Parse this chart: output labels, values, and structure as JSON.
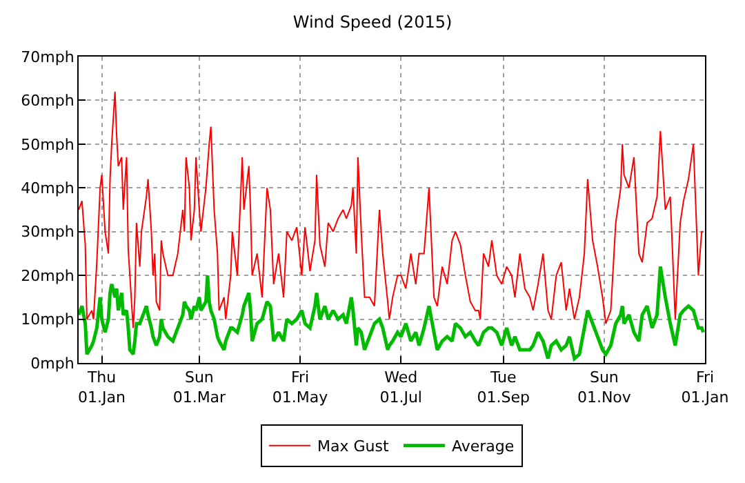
{
  "chart_data": {
    "type": "line",
    "title": "Wind Speed (2015)",
    "x": [
      "2014-12-18",
      "2014-12-20",
      "2014-12-22",
      "2014-12-23",
      "2014-12-26",
      "2014-12-27",
      "2014-12-29",
      "2014-12-31",
      "2015-01-01",
      "2015-01-03",
      "2015-01-05",
      "2015-01-06",
      "2015-01-07",
      "2015-01-09",
      "2015-01-10",
      "2015-01-11",
      "2015-01-13",
      "2015-01-14",
      "2015-01-16",
      "2015-01-17",
      "2015-01-18",
      "2015-01-20",
      "2015-01-21",
      "2015-01-22",
      "2015-01-24",
      "2015-01-25",
      "2015-01-28",
      "2015-01-29",
      "2015-01-31",
      "2015-02-01",
      "2015-02-02",
      "2015-02-03",
      "2015-02-05",
      "2015-02-06",
      "2015-02-07",
      "2015-02-10",
      "2015-02-13",
      "2015-02-16",
      "2015-02-19",
      "2015-02-20",
      "2015-02-21",
      "2015-02-23",
      "2015-02-24",
      "2015-02-26",
      "2015-02-27",
      "2015-03-01",
      "2015-03-02",
      "2015-03-05",
      "2015-03-06",
      "2015-03-07",
      "2015-03-08",
      "2015-03-10",
      "2015-03-12",
      "2015-03-13",
      "2015-03-16",
      "2015-03-17",
      "2015-03-20",
      "2015-03-21",
      "2015-03-24",
      "2015-03-27",
      "2015-03-28",
      "2015-03-31",
      "2015-04-01",
      "2015-04-02",
      "2015-04-05",
      "2015-04-08",
      "2015-04-11",
      "2015-04-13",
      "2015-04-15",
      "2015-04-18",
      "2015-04-21",
      "2015-04-23",
      "2015-04-26",
      "2015-04-29",
      "2015-05-02",
      "2015-05-04",
      "2015-05-07",
      "2015-05-10",
      "2015-05-11",
      "2015-05-13",
      "2015-05-16",
      "2015-05-18",
      "2015-05-21",
      "2015-05-24",
      "2015-05-27",
      "2015-05-29",
      "2015-06-01",
      "2015-06-02",
      "2015-06-04",
      "2015-06-05",
      "2015-06-07",
      "2015-06-09",
      "2015-06-12",
      "2015-06-15",
      "2015-06-18",
      "2015-06-20",
      "2015-06-23",
      "2015-06-24",
      "2015-06-26",
      "2015-06-29",
      "2015-07-01",
      "2015-07-04",
      "2015-07-07",
      "2015-07-10",
      "2015-07-12",
      "2015-07-15",
      "2015-07-18",
      "2015-07-21",
      "2015-07-23",
      "2015-07-26",
      "2015-07-29",
      "2015-08-01",
      "2015-08-03",
      "2015-08-06",
      "2015-08-09",
      "2015-08-12",
      "2015-08-15",
      "2015-08-17",
      "2015-08-18",
      "2015-08-20",
      "2015-08-23",
      "2015-08-25",
      "2015-08-28",
      "2015-08-31",
      "2015-09-03",
      "2015-09-06",
      "2015-09-08",
      "2015-09-11",
      "2015-09-14",
      "2015-09-17",
      "2015-09-19",
      "2015-09-22",
      "2015-09-25",
      "2015-09-28",
      "2015-09-30",
      "2015-10-03",
      "2015-10-06",
      "2015-10-09",
      "2015-10-11",
      "2015-10-14",
      "2015-10-17",
      "2015-10-20",
      "2015-10-22",
      "2015-10-25",
      "2015-10-28",
      "2015-10-31",
      "2015-11-02",
      "2015-11-05",
      "2015-11-08",
      "2015-11-11",
      "2015-11-12",
      "2015-11-13",
      "2015-11-16",
      "2015-11-19",
      "2015-11-22",
      "2015-11-24",
      "2015-11-27",
      "2015-11-30",
      "2015-12-03",
      "2015-12-05",
      "2015-12-08",
      "2015-12-11",
      "2015-12-14",
      "2015-12-17",
      "2015-12-19",
      "2015-12-22",
      "2015-12-25",
      "2015-12-28",
      "2015-12-30",
      "2015-12-31"
    ],
    "series": [
      {
        "name": "Max Gust",
        "color": "#ff0000",
        "values": [
          35,
          37,
          27,
          10,
          12,
          10,
          23,
          40,
          43,
          30,
          25,
          42,
          50,
          62,
          52,
          45,
          47,
          35,
          47,
          26,
          20,
          8,
          15,
          32,
          22,
          30,
          38,
          42,
          30,
          20,
          25,
          14,
          12,
          28,
          25,
          20,
          20,
          25,
          35,
          30,
          47,
          40,
          28,
          35,
          47,
          35,
          30,
          40,
          45,
          50,
          54,
          35,
          25,
          12,
          15,
          10,
          20,
          30,
          20,
          47,
          35,
          45,
          35,
          20,
          25,
          15,
          40,
          35,
          18,
          25,
          15,
          30,
          28,
          31,
          20,
          31,
          21,
          28,
          43,
          27,
          22,
          32,
          30,
          33,
          35,
          33,
          36,
          40,
          25,
          47,
          30,
          15,
          15,
          13,
          35,
          25,
          14,
          10,
          15,
          20,
          20,
          17,
          25,
          18,
          25,
          25,
          40,
          15,
          13,
          22,
          18,
          28,
          30,
          27,
          20,
          14,
          12,
          12,
          10,
          25,
          22,
          28,
          20,
          18,
          22,
          20,
          15,
          25,
          17,
          15,
          12,
          18,
          25,
          12,
          10,
          20,
          23,
          12,
          17,
          10,
          15,
          25,
          42,
          28,
          22,
          15,
          9,
          12,
          32,
          40,
          50,
          43,
          40,
          47,
          25,
          23,
          32,
          33,
          38,
          53,
          35,
          38,
          10,
          32,
          37,
          42,
          50,
          20,
          30,
          30
        ]
      },
      {
        "name": "Average",
        "color": "#00bb00",
        "values": [
          11,
          13,
          9,
          2,
          4,
          5,
          8,
          15,
          10,
          7,
          10,
          16,
          18,
          15,
          17,
          12,
          16,
          11,
          12,
          8,
          3,
          2,
          5,
          9,
          9,
          10,
          13,
          11,
          8,
          6,
          5,
          4,
          6,
          10,
          8,
          6,
          5,
          8,
          11,
          14,
          13,
          12,
          10,
          13,
          12,
          15,
          12,
          14,
          20,
          14,
          12,
          10,
          6,
          5,
          3,
          5,
          8,
          8,
          7,
          11,
          13,
          16,
          12,
          5,
          9,
          10,
          14,
          13,
          5,
          7,
          5,
          10,
          9,
          10,
          12,
          9,
          8,
          13,
          16,
          10,
          13,
          10,
          12,
          10,
          11,
          9,
          15,
          12,
          4,
          8,
          7,
          3,
          6,
          9,
          10,
          8,
          3,
          4,
          5,
          7,
          6,
          9,
          5,
          7,
          4,
          8,
          13,
          7,
          3,
          5,
          6,
          5,
          9,
          8,
          6,
          7,
          5,
          4,
          5,
          7,
          8,
          8,
          7,
          4,
          8,
          4,
          6,
          3,
          3,
          3,
          4,
          7,
          5,
          1,
          4,
          5,
          3,
          4,
          6,
          1,
          2,
          8,
          12,
          9,
          6,
          3,
          2,
          4,
          9,
          11,
          13,
          9,
          11,
          7,
          5,
          11,
          13,
          8,
          11,
          22,
          15,
          9,
          4,
          11,
          12,
          13,
          12,
          8,
          8,
          7
        ]
      }
    ],
    "xlim": [
      "2014-12-18",
      "2016-01-01"
    ],
    "xticks": [
      {
        "value": "2015-01-01",
        "label": "Thu\n01.Jan"
      },
      {
        "value": "2015-03-01",
        "label": "Sun\n01.Mar"
      },
      {
        "value": "2015-05-01",
        "label": "Fri\n01.May"
      },
      {
        "value": "2015-07-01",
        "label": "Wed\n01.Jul"
      },
      {
        "value": "2015-09-01",
        "label": "Tue\n01.Sep"
      },
      {
        "value": "2015-11-01",
        "label": "Sun\n01.Nov"
      },
      {
        "value": "2016-01-01",
        "label": "Fri\n01.Jan"
      }
    ],
    "ylim": [
      0,
      70
    ],
    "yticks": [
      {
        "value": 0,
        "label": "0mph"
      },
      {
        "value": 10,
        "label": "10mph"
      },
      {
        "value": 20,
        "label": "20mph"
      },
      {
        "value": 30,
        "label": "30mph"
      },
      {
        "value": 40,
        "label": "40mph"
      },
      {
        "value": 50,
        "label": "50mph"
      },
      {
        "value": 60,
        "label": "60mph"
      },
      {
        "value": 70,
        "label": "70mph"
      }
    ],
    "grid": true,
    "legend": "bottom",
    "marker": "none",
    "line_style": "solid"
  }
}
